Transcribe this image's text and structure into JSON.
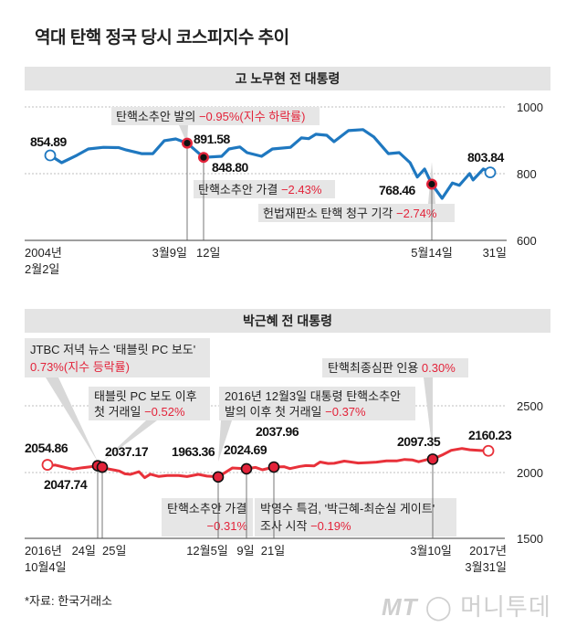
{
  "title": "역대 탄핵 정국 당시 코스피지수 추이",
  "source": "*자료: 한국거래소",
  "logo": {
    "mark": "MT",
    "name": "머니투데이"
  },
  "colors": {
    "roh_line": "#1f78c0",
    "park_line": "#e8313a",
    "highlight": "#e3233a",
    "box": "#e6e6e6"
  },
  "chart_data": [
    {
      "type": "line",
      "title": "고 노무현 전 대통령",
      "ylim": [
        600,
        1000
      ],
      "yticks": [
        "1000",
        "800",
        "600"
      ],
      "grid": true,
      "xticks": [
        {
          "line1": "2004년",
          "line2": "2월2일"
        },
        {
          "line1": "3월9일"
        },
        {
          "line1": "12일"
        },
        {
          "line1": "5월14일"
        },
        {
          "line1": "31일"
        }
      ],
      "start": {
        "date": "2004-02-02",
        "value": 854.89,
        "label": "854.89"
      },
      "end": {
        "date": "2004-05-31",
        "value": 803.84,
        "label": "803.84"
      },
      "events": [
        {
          "date": "2004-03-09",
          "value": 891.58,
          "label": "891.58",
          "text": "탄핵소추안 발의 ",
          "change": "−0.95%(지수 하락률)"
        },
        {
          "date": "2004-03-12",
          "value": 848.8,
          "label": "848.80",
          "text": "탄핵소추안 가결 ",
          "change": "−2.43%"
        },
        {
          "date": "2004-05-14",
          "value": 768.46,
          "label": "768.46",
          "text": "헌법재판소 탄핵 청구 기각 ",
          "change": "−2.74%"
        }
      ],
      "series": [
        {
          "points": [
            [
              "2004-02-02",
              854.89
            ],
            [
              "2004-02-05",
              833
            ],
            [
              "2004-02-09",
              855
            ],
            [
              "2004-02-12",
              874
            ],
            [
              "2004-02-16",
              879
            ],
            [
              "2004-02-20",
              878
            ],
            [
              "2004-02-22",
              871
            ],
            [
              "2004-02-26",
              860
            ],
            [
              "2004-02-29",
              860
            ],
            [
              "2004-03-03",
              899
            ],
            [
              "2004-03-06",
              904
            ],
            [
              "2004-03-09",
              891.58
            ],
            [
              "2004-03-12",
              848.8
            ],
            [
              "2004-03-17",
              852
            ],
            [
              "2004-03-19",
              874
            ],
            [
              "2004-03-22",
              880
            ],
            [
              "2004-03-24",
              863
            ],
            [
              "2004-03-28",
              852
            ],
            [
              "2004-03-31",
              874
            ],
            [
              "2004-04-05",
              879
            ],
            [
              "2004-04-08",
              907
            ],
            [
              "2004-04-10",
              905
            ],
            [
              "2004-04-12",
              918
            ],
            [
              "2004-04-15",
              915
            ],
            [
              "2004-04-17",
              896
            ],
            [
              "2004-04-21",
              929
            ],
            [
              "2004-04-25",
              932
            ],
            [
              "2004-04-28",
              910
            ],
            [
              "2004-05-02",
              860
            ],
            [
              "2004-05-05",
              863
            ],
            [
              "2004-05-08",
              833
            ],
            [
              "2004-05-10",
              790
            ],
            [
              "2004-05-12",
              814
            ],
            [
              "2004-05-14",
              768.46
            ],
            [
              "2004-05-17",
              726
            ],
            [
              "2004-05-20",
              772
            ],
            [
              "2004-05-22",
              765
            ],
            [
              "2004-05-25",
              800
            ],
            [
              "2004-05-26",
              781
            ],
            [
              "2004-05-29",
              814
            ],
            [
              "2004-05-31",
              803.84
            ]
          ]
        }
      ]
    },
    {
      "type": "line",
      "title": "박근혜 전 대통령",
      "ylim": [
        1500,
        2500
      ],
      "yticks": [
        "2500",
        "2000",
        "1500"
      ],
      "grid": true,
      "xticks": [
        {
          "line1": "2016년",
          "line2": "10월4일"
        },
        {
          "line1": "24일"
        },
        {
          "line1": "25일"
        },
        {
          "line1": "12월5일"
        },
        {
          "line1": "9일"
        },
        {
          "line1": "21일"
        },
        {
          "line1": "3월10일"
        },
        {
          "line1": "2017년",
          "line2": "3월31일"
        }
      ],
      "start": {
        "date": "2016-10-04",
        "value": 2054.86,
        "label": "2054.86"
      },
      "end": {
        "date": "2017-03-31",
        "value": 2160.23,
        "label": "2160.23"
      },
      "events": [
        {
          "date": "2016-10-24",
          "value": 2047.74,
          "label": "2047.74",
          "text": "JTBC 저녁 뉴스 '태블릿 PC 보도'",
          "change": "0.73%(지수 등락률)"
        },
        {
          "date": "2016-10-25",
          "value": 2037.17,
          "label": "2037.17",
          "text": "태블릿 PC 보도 이후",
          "text2": "첫 거래일 ",
          "change": "−0.52%"
        },
        {
          "date": "2016-12-05",
          "value": 1963.36,
          "label": "1963.36",
          "text": "2016년 12월3일 대통령 탄핵소추안",
          "text2": "발의 이후 첫 거래일 ",
          "change": "−0.37%"
        },
        {
          "date": "2016-12-09",
          "value": 2024.69,
          "label": "2024.69",
          "text": "탄핵소추안 가결",
          "change": "−0.31%"
        },
        {
          "date": "2016-12-21",
          "value": 2037.96,
          "label": "2037.96",
          "text": "박영수 특검, '박근혜-최순실 게이트'",
          "text2": "조사 시작 ",
          "change": "−0.19%"
        },
        {
          "date": "2017-03-10",
          "value": 2097.35,
          "label": "2097.35",
          "text": "탄핵최종심판 인용 ",
          "change": "0.30%"
        }
      ],
      "series": [
        {
          "points": [
            [
              "2016-10-04",
              2054.86
            ],
            [
              "2016-10-05",
              2047
            ],
            [
              "2016-10-07",
              2053
            ],
            [
              "2016-10-11",
              2035
            ],
            [
              "2016-10-14",
              2022
            ],
            [
              "2016-10-18",
              2033
            ],
            [
              "2016-10-21",
              2040
            ],
            [
              "2016-10-24",
              2047.74
            ],
            [
              "2016-10-25",
              2037.17
            ],
            [
              "2016-10-27",
              2024
            ],
            [
              "2016-10-31",
              2008
            ],
            [
              "2016-11-02",
              1987
            ],
            [
              "2016-11-04",
              1983
            ],
            [
              "2016-11-07",
              2003
            ],
            [
              "2016-11-09",
              1958
            ],
            [
              "2016-11-11",
              1984
            ],
            [
              "2016-11-14",
              1967
            ],
            [
              "2016-11-17",
              1974
            ],
            [
              "2016-11-21",
              1974
            ],
            [
              "2016-11-24",
              1966
            ],
            [
              "2016-11-28",
              1983
            ],
            [
              "2016-12-01",
              1970
            ],
            [
              "2016-12-05",
              1963.36
            ],
            [
              "2016-12-07",
              2031
            ],
            [
              "2016-12-09",
              2024.69
            ],
            [
              "2016-12-13",
              2035
            ],
            [
              "2016-12-16",
              2017
            ],
            [
              "2016-12-21",
              2037.96
            ],
            [
              "2016-12-26",
              2041
            ],
            [
              "2016-12-29",
              2026
            ],
            [
              "2017-01-03",
              2043
            ],
            [
              "2017-01-06",
              2049
            ],
            [
              "2017-01-10",
              2046
            ],
            [
              "2017-01-13",
              2076
            ],
            [
              "2017-01-17",
              2065
            ],
            [
              "2017-01-20",
              2066
            ],
            [
              "2017-01-25",
              2083
            ],
            [
              "2017-02-01",
              2068
            ],
            [
              "2017-02-06",
              2072
            ],
            [
              "2017-02-10",
              2075
            ],
            [
              "2017-02-15",
              2085
            ],
            [
              "2017-02-20",
              2084
            ],
            [
              "2017-02-24",
              2095
            ],
            [
              "2017-02-28",
              2091
            ],
            [
              "2017-03-03",
              2078
            ],
            [
              "2017-03-07",
              2094
            ],
            [
              "2017-03-10",
              2097.35
            ],
            [
              "2017-03-14",
              2133
            ],
            [
              "2017-03-17",
              2164
            ],
            [
              "2017-03-21",
              2178
            ],
            [
              "2017-03-24",
              2168
            ],
            [
              "2017-03-28",
              2163
            ],
            [
              "2017-03-31",
              2160.23
            ]
          ]
        }
      ]
    }
  ]
}
